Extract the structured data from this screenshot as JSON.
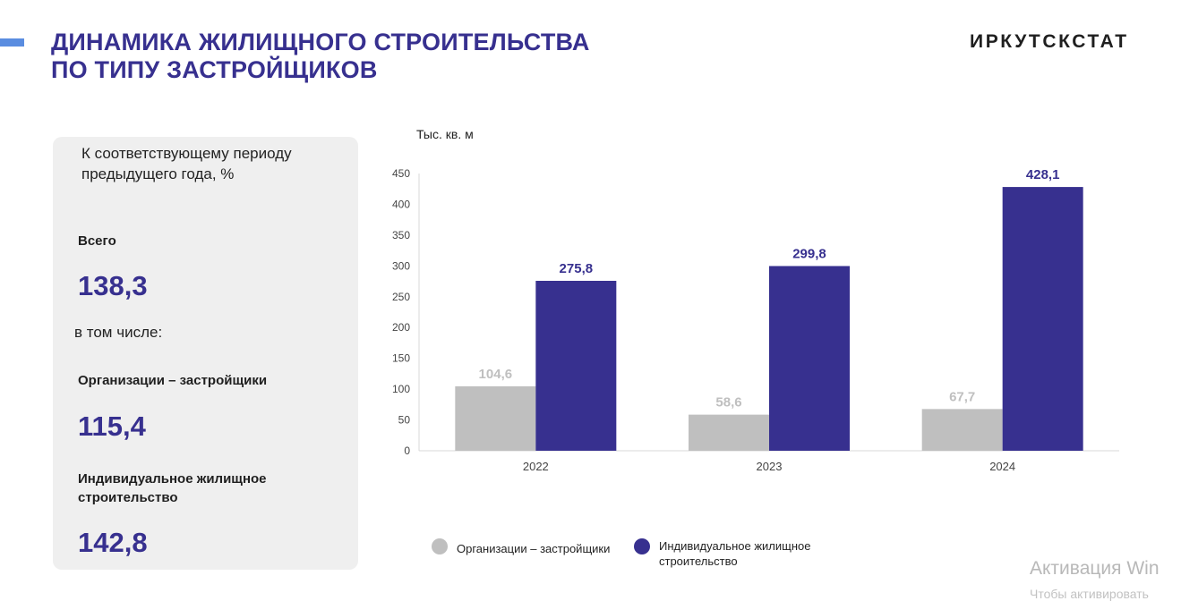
{
  "header": {
    "title_line1": "ДИНАМИКА ЖИЛИЩНОГО СТРОИТЕЛЬСТВА",
    "title_line2": "ПО ТИПУ ЗАСТРОЙЩИКОВ",
    "logo": "ИРКУТСКСТАТ"
  },
  "summary": {
    "note": "К соответствующему периоду предыдущего года, %",
    "total_label": "Всего",
    "total_value": "138,3",
    "including_label": "в том числе:",
    "org_label": "Организации – застройщики",
    "org_value": "115,4",
    "individual_label": "Индивидуальное жилищное строительство",
    "individual_value": "142,8"
  },
  "chart_data": {
    "type": "bar",
    "ylabel": "Тыс. кв. м",
    "categories": [
      "2022",
      "2023",
      "2024"
    ],
    "yticks": [
      0,
      50,
      100,
      150,
      200,
      250,
      300,
      350,
      400,
      450
    ],
    "ylim": [
      0,
      450
    ],
    "grid": false,
    "legend_position": "bottom",
    "series": [
      {
        "name": "Организации – застройщики",
        "color": "#bfbfbf",
        "label_color": "#bfbfbf",
        "values": [
          104.6,
          58.6,
          67.7
        ],
        "labels": [
          "104,6",
          "58,6",
          "67,7"
        ]
      },
      {
        "name": "Индивидуальное жилищное строительство",
        "color": "#37308f",
        "label_color": "#37308f",
        "values": [
          275.8,
          299.8,
          428.1
        ],
        "labels": [
          "275,8",
          "299,8",
          "428,1"
        ]
      }
    ]
  },
  "legend": {
    "item1": "Организации – застройщики",
    "item2": "Индивидуальное жилищное строительство",
    "color1": "#bfbfbf",
    "color2": "#37308f"
  },
  "watermark": {
    "line1": "Активация Win",
    "line2": "Чтобы активировать"
  }
}
